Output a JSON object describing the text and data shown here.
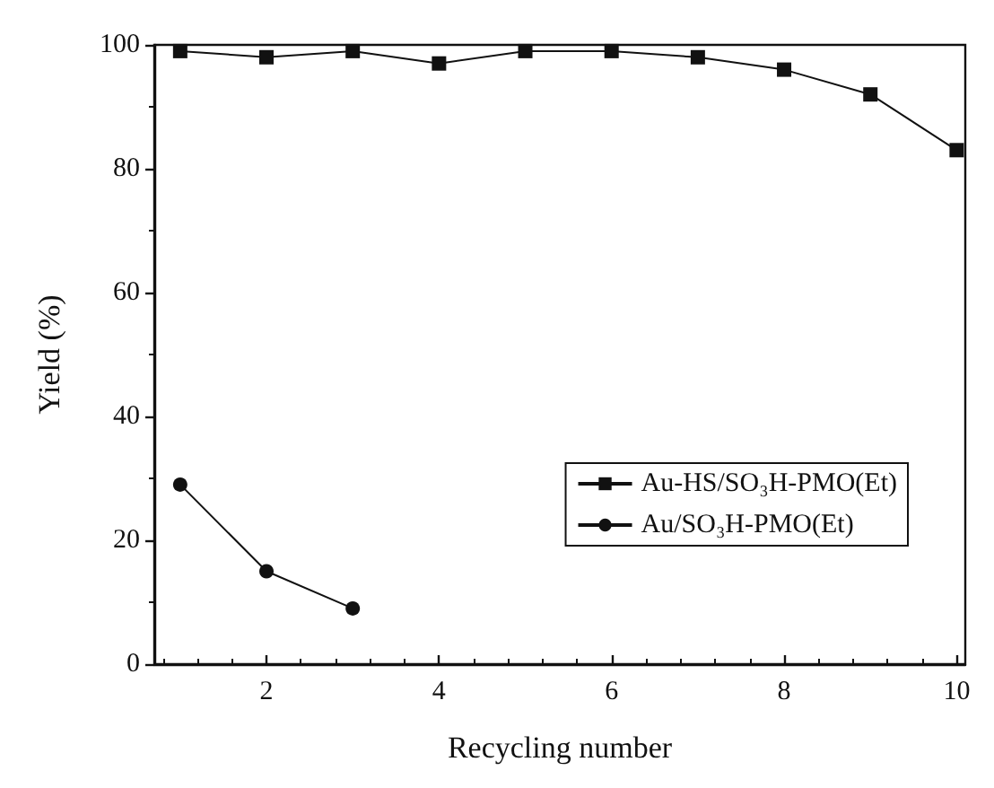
{
  "chart_data": {
    "type": "line",
    "xlabel": "Recycling number",
    "ylabel": "Yield (%)",
    "xlim": [
      0.7,
      10.1
    ],
    "xticks": [
      2,
      4,
      6,
      8,
      10
    ],
    "ylim": [
      0,
      100
    ],
    "yticks": [
      0,
      20,
      40,
      60,
      80,
      100
    ],
    "legend": "right",
    "grid": false,
    "series": [
      {
        "name": "Au-HS/SO₃H-PMO(Et)",
        "color": "#111111",
        "marker": "square",
        "x": [
          1,
          2,
          3,
          4,
          5,
          6,
          7,
          8,
          9,
          10
        ],
        "values": [
          99,
          98,
          99,
          97,
          99,
          99,
          98,
          96,
          92,
          83
        ]
      },
      {
        "name": "Au/SO₃H-PMO(Et)",
        "color": "#111111",
        "marker": "circle",
        "x": [
          1,
          2,
          3
        ],
        "values": [
          29,
          15,
          9
        ]
      }
    ]
  }
}
